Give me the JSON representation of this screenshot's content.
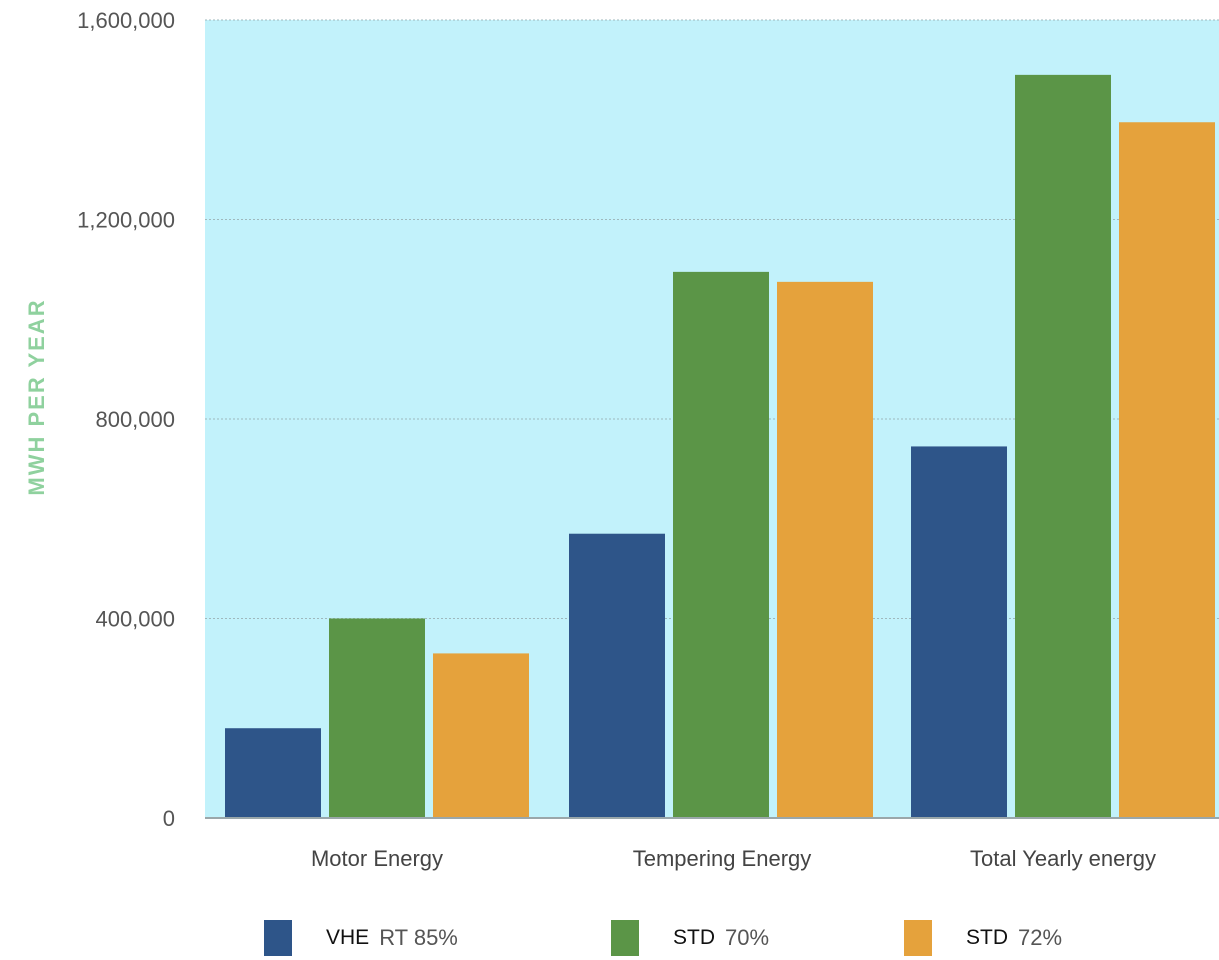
{
  "chart_data": {
    "type": "bar",
    "categories": [
      "Motor Energy",
      "Tempering Energy",
      "Total Yearly energy"
    ],
    "series": [
      {
        "name": "VHE RT 85%",
        "legend_main": "VHE",
        "legend_sub": "RT 85%",
        "color": "#2e5589",
        "values": [
          180000,
          570000,
          745000
        ]
      },
      {
        "name": "STD 70%",
        "legend_main": "STD",
        "legend_sub": "70%",
        "color": "#5b9547",
        "values": [
          400000,
          1095000,
          1490000
        ]
      },
      {
        "name": "STD 72%",
        "legend_main": "STD",
        "legend_sub": "72%",
        "color": "#e5a23c",
        "values": [
          330000,
          1075000,
          1395000
        ]
      }
    ],
    "ylabel": "MWH PER YEAR",
    "ylim": [
      0,
      1600000
    ],
    "yticks": [
      0,
      400000,
      800000,
      1200000,
      1600000
    ],
    "ytick_labels": [
      "0",
      "400,000",
      "800,000",
      "1,200,000",
      "1,600,000"
    ],
    "grid": true,
    "plot_background": "#c2f2fb",
    "legend_position": "bottom"
  }
}
